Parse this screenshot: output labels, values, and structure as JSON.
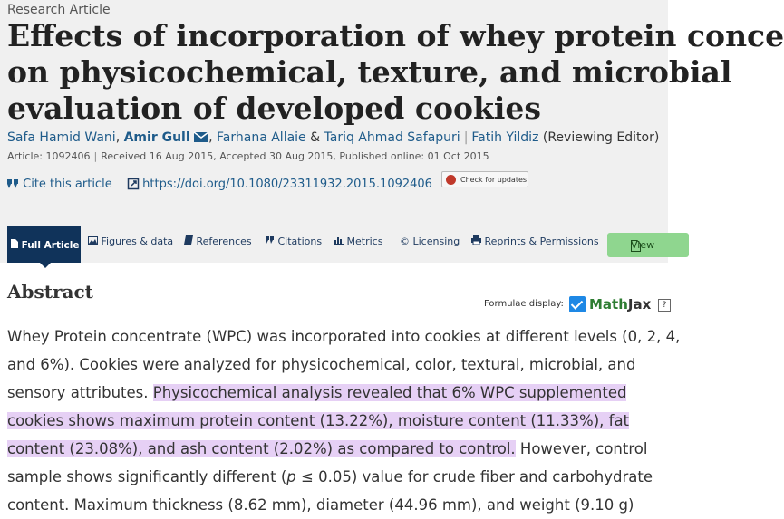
{
  "article": {
    "type": "Research Article",
    "title_lines": [
      "Effects of incorporation of whey protein conce",
      "on physicochemical, texture, and microbial",
      "evaluation of developed cookies"
    ],
    "authors": {
      "a1": "Safa Hamid Wani",
      "a2": "Amir Gull",
      "a3": "Farhana Allaie",
      "amp": "&",
      "a4": "Tariq Ahmad Safapuri",
      "a5": "Fatih Yildiz",
      "a5_role": "(Reviewing Editor)"
    },
    "meta": {
      "article_no": "Article: 1092406",
      "received": "Received 16 Aug 2015",
      "accepted": "Accepted 30 Aug 2015",
      "published": "Published online: 01 Oct 2015"
    },
    "cite_label": "Cite this article",
    "doi": "https://doi.org/10.1080/23311932.2015.1092406",
    "check_updates": "Check for updates"
  },
  "tabs": {
    "full_article": "Full Article",
    "figures": "Figures & data",
    "references": "References",
    "citations": "Citations",
    "metrics": "Metrics",
    "licensing": "Licensing",
    "reprints": "Reprints & Permissions",
    "view": "View"
  },
  "abstract": {
    "heading": "Abstract",
    "formulae_label": "Formulae display:",
    "mathjax_m": "Math",
    "mathjax_j": "Jax",
    "help": "?",
    "lines": {
      "l1": "Whey Protein concentrate (WPC) was incorporated into cookies at different levels (0, 2, 4,",
      "l2": "and 6%). Cookies were analyzed for physicochemical, color, textural, microbial, and",
      "l3a": "sensory attributes. ",
      "l3b": "Physicochemical analysis revealed that 6% WPC supplemented",
      "l4": "cookies shows maximum protein content (13.22%), moisture content (11.33%), fat",
      "l5a": "content (23.08%), and ash content (2.02%) as compared to control.",
      "l5b": " However, control",
      "l6a": "sample shows significantly different (",
      "l6b": "p",
      "l6c": " ≤ 0.05) value for crude fiber and carbohydrate",
      "l7": "content. Maximum thickness (8.62 mm), diameter (44.96 mm), and weight (9.10 g)"
    }
  }
}
